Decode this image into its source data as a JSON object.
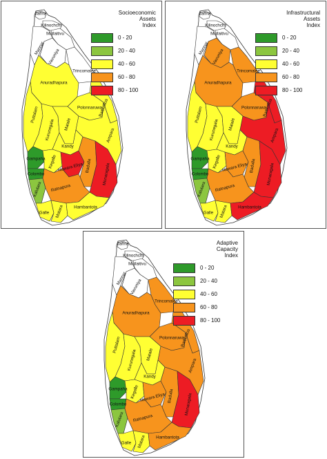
{
  "legend_ranges": [
    "0 - 20",
    "20 - 40",
    "40 - 60",
    "60 - 80",
    "80 - 100"
  ],
  "legend_colors": [
    "#2e9a2a",
    "#8cc63f",
    "#ffff33",
    "#f7941d",
    "#ed1c24"
  ],
  "uncolored_fill": "#ffffff",
  "panels": [
    {
      "title": "Socioeconomic\nAssets\nIndex",
      "labels": {
        "jaffna": "Jaffna",
        "kilinochchi": "Kilinochchi",
        "mullaitivu": "Mullaitivu",
        "mannar": "Mannar",
        "vavuniya": "Vavuniya",
        "trincomalee": "Trincomalee",
        "anuradhapura": "Anuradhapura",
        "puttalam": "Puttalam",
        "kurunegala": "Kurunegala",
        "polonnaruwa": "Polonnaruwa",
        "matale": "Matale",
        "batticaloa": "Batticaloa",
        "ampara": "Ampara",
        "kandy": "Kandy",
        "gampaha": "Gampaha",
        "kegalle": "Kegalle",
        "colombo": "Colombo",
        "nuwaraeliya": "Nuwara Eliya",
        "badulla": "Badulla",
        "monaragala": "Monaragala",
        "kalutara": "Kalutara",
        "ratnapura": "Ratnapura",
        "galle": "Galle",
        "matara": "Matara",
        "hambantota": "Hambantota"
      },
      "classes": {
        "jaffna": "none",
        "kilinochchi": "none",
        "mullaitivu": "none",
        "mannar": "none",
        "vavuniya": "none",
        "trincomalee": "none",
        "anuradhapura": "c3",
        "puttalam": "c3",
        "kurunegala": "c3",
        "polonnaruwa": "c3",
        "matale": "c3",
        "batticaloa": "c3",
        "ampara": "c3",
        "kandy": "c3",
        "gampaha": "c1",
        "kegalle": "c3",
        "colombo": "c1",
        "nuwaraeliya": "c5",
        "badulla": "c4",
        "monaragala": "c5",
        "kalutara": "c2",
        "ratnapura": "c4",
        "galle": "c3",
        "matara": "c3",
        "hambantota": "c3"
      }
    },
    {
      "title": "Infrastructural\nAssets\nIndex",
      "labels": {
        "jaffna": "Jaffna",
        "kilinochchi": "Kilinochchi",
        "mullaitivu": "Mullaitivu",
        "mannar": "Mannar",
        "vavuniya": "Vavuniya",
        "trincomalee": "Trincomalee",
        "anuradhapura": "Anuradhapura",
        "puttalam": "Puttalam",
        "kurunegala": "Kurunegala",
        "polonnaruwa": "Polonnaruwa",
        "matale": "Matale",
        "batticaloa": "Batticaloa",
        "ampara": "Ampara",
        "kandy": "Kandy",
        "gampaha": "Gampaha",
        "kegalle": "Kegalle",
        "colombo": "Colombo",
        "nuwaraeliya": "Nuwara Eliya",
        "badulla": "Badulla",
        "monaragala": "Monaragala",
        "kalutara": "Kalutara",
        "ratnapura": "Ratnapura",
        "galle": "Galle",
        "matara": "Matara",
        "hambantota": "Hambantota"
      },
      "classes": {
        "jaffna": "none",
        "kilinochchi": "none",
        "mullaitivu": "none",
        "mannar": "none",
        "vavuniya": "c4",
        "trincomalee": "c4",
        "anuradhapura": "c4",
        "puttalam": "c3",
        "kurunegala": "c3",
        "polonnaruwa": "c4",
        "matale": "c3",
        "batticaloa": "c5",
        "ampara": "c5",
        "kandy": "c3",
        "gampaha": "c1",
        "kegalle": "c3",
        "colombo": "c1",
        "nuwaraeliya": "c4",
        "badulla": "c4",
        "monaragala": "c5",
        "kalutara": "c2",
        "ratnapura": "c4",
        "galle": "c3",
        "matara": "c3",
        "hambantota": "c5"
      }
    },
    {
      "title": "Adaptive\nCapacity\nIndex",
      "labels": {
        "jaffna": "Jaffna",
        "kilinochchi": "Kilinochchi",
        "mullaitivu": "Mullaitivu",
        "mannar": "Mannar",
        "vavuniya": "Vavuniya",
        "trincomalee": "Trincomalee",
        "anuradhapura": "Anuradhapura",
        "puttalam": "Puttalam",
        "kurunegala": "Kurunegala",
        "polonnaruwa": "Polonnaruwa",
        "matale": "Matale",
        "batticaloa": "Batticaloa",
        "ampara": "Ampara",
        "kandy": "Kandy",
        "gampaha": "Gampaha",
        "kegalle": "Kegalle",
        "colombo": "Colombo",
        "nuwaraeliya": "Nuwara Eliya",
        "badulla": "Badulla",
        "monaragala": "Monaragala",
        "kalutara": "Kalutara",
        "ratnapura": "Ratnapura",
        "galle": "Galle",
        "matara": "Matara",
        "hambantota": "Hambantota"
      },
      "classes": {
        "jaffna": "none",
        "kilinochchi": "none",
        "mullaitivu": "none",
        "mannar": "none",
        "vavuniya": "none",
        "trincomalee": "c4",
        "anuradhapura": "c4",
        "puttalam": "c3",
        "kurunegala": "c3",
        "polonnaruwa": "c4",
        "matale": "c3",
        "batticaloa": "c4",
        "ampara": "c4",
        "kandy": "c3",
        "gampaha": "c1",
        "kegalle": "c3",
        "colombo": "c1",
        "nuwaraeliya": "c4",
        "badulla": "c4",
        "monaragala": "c5",
        "kalutara": "c2",
        "ratnapura": "c4",
        "galle": "c3",
        "matara": "c3",
        "hambantota": "c4"
      }
    }
  ]
}
